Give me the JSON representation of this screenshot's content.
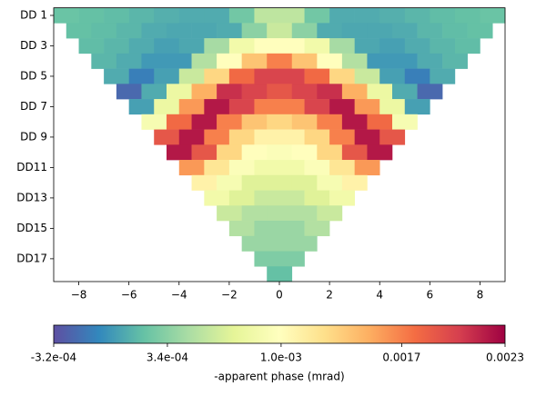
{
  "chart_data": {
    "type": "heatmap",
    "colormap": "Spectral_r",
    "categories": [
      "DD 1",
      null,
      "DD 3",
      null,
      "DD 5",
      null,
      "DD 7",
      null,
      "DD 9",
      null,
      "DD11",
      null,
      "DD13",
      null,
      "DD15",
      null,
      "DD17",
      null
    ],
    "values": [
      [
        0.00022,
        0.0002,
        0.00018,
        0.00015,
        0.00012,
        0.0001,
        0.0001,
        0.00025,
        0.00055,
        0.00055,
        0.00025,
        0.0001,
        0.0001,
        0.00012,
        0.00015,
        0.00018,
        0.0002,
        0.00022
      ],
      [
        0.0002,
        0.00018,
        0.00015,
        0.0001,
        8e-05,
        8e-05,
        0.0001,
        0.00035,
        0.0006,
        0.00035,
        0.0001,
        8e-05,
        8e-05,
        0.0001,
        0.00015,
        0.00018,
        0.0002
      ],
      [
        0.00018,
        0.00015,
        0.0001,
        5e-05,
        8e-05,
        0.00045,
        0.00085,
        0.001,
        0.001,
        0.00085,
        0.00045,
        8e-05,
        5e-05,
        0.0001,
        0.00015,
        0.00018
      ],
      [
        0.00015,
        0.0001,
        2e-05,
        2e-05,
        0.0005,
        0.001,
        0.0014,
        0.0017,
        0.0014,
        0.001,
        0.0005,
        2e-05,
        2e-05,
        0.0001,
        0.00015
      ],
      [
        0.0001,
        -0.0001,
        5e-05,
        0.0006,
        0.0013,
        0.0018,
        0.002,
        0.002,
        0.0018,
        0.0013,
        0.0006,
        5e-05,
        -0.0001,
        0.0001
      ],
      [
        -0.0002,
        0.0001,
        0.0008,
        0.0015,
        0.0021,
        0.002,
        0.0019,
        0.002,
        0.0021,
        0.0015,
        0.0008,
        0.0001,
        -0.0002
      ],
      [
        5e-05,
        0.0008,
        0.0016,
        0.0022,
        0.002,
        0.0017,
        0.0017,
        0.002,
        0.0022,
        0.0016,
        0.0008,
        5e-05
      ],
      [
        0.0009,
        0.0018,
        0.0022,
        0.0017,
        0.0014,
        0.0013,
        0.0014,
        0.0017,
        0.0022,
        0.0018,
        0.0009
      ],
      [
        0.0019,
        0.0022,
        0.0017,
        0.0013,
        0.0011,
        0.0011,
        0.0013,
        0.0017,
        0.0022,
        0.0019
      ],
      [
        0.0022,
        0.0019,
        0.0013,
        0.001,
        0.00095,
        0.001,
        0.0013,
        0.0019,
        0.0022
      ],
      [
        0.0016,
        0.0012,
        0.00095,
        0.00085,
        0.00085,
        0.00095,
        0.0012,
        0.0016
      ],
      [
        0.0011,
        0.0009,
        0.0007,
        0.0007,
        0.0007,
        0.0009,
        0.0011
      ],
      [
        0.00085,
        0.0007,
        0.0006,
        0.0006,
        0.0007,
        0.00085
      ],
      [
        0.0006,
        0.0005,
        0.0005,
        0.0005,
        0.0006
      ],
      [
        0.0005,
        0.0004,
        0.0004,
        0.0005
      ],
      [
        0.0004,
        0.0004,
        0.0004
      ],
      [
        0.0003,
        0.0003
      ],
      [
        0.0002
      ]
    ],
    "xlim": [
      -9,
      9
    ],
    "xticks": [
      {
        "value": -8,
        "label": "−8"
      },
      {
        "value": -6,
        "label": "−6"
      },
      {
        "value": -4,
        "label": "−4"
      },
      {
        "value": -2,
        "label": "−2"
      },
      0,
      2,
      4,
      6,
      8
    ],
    "clim": [
      -0.00032,
      0.0023
    ],
    "cticks": [
      {
        "value": -0.00032,
        "label": "-3.2e-04"
      },
      {
        "value": 0.00034,
        "label": "3.4e-04"
      },
      {
        "value": 0.001,
        "label": "1.0e-03"
      },
      0.0017,
      0.0023
    ],
    "colorbar_label": "-apparent phase (mrad)"
  }
}
